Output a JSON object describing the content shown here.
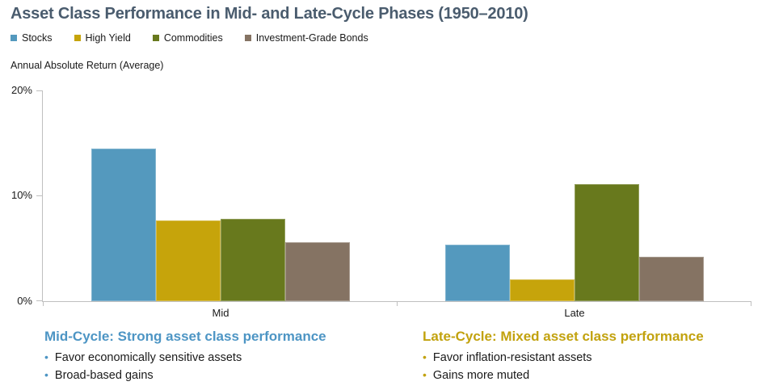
{
  "title": "Asset Class Performance in Mid- and Late-Cycle Phases (1950–2010)",
  "axis_title": "Annual Absolute Return (Average)",
  "colors": {
    "title_text": "#4A5C6E",
    "axis_line": "#BFBFBF",
    "stocks": "#5499BE",
    "high_yield": "#C6A40B",
    "commodities": "#68791D",
    "bonds": "#857363",
    "mid_heading": "#4D95C4",
    "late_heading": "#C2A20E"
  },
  "legend": [
    {
      "label": "Stocks",
      "color": "#5499BE"
    },
    {
      "label": "High Yield",
      "color": "#C6A40B"
    },
    {
      "label": "Commodities",
      "color": "#68791D"
    },
    {
      "label": "Investment-Grade Bonds",
      "color": "#857363"
    }
  ],
  "chart_data": {
    "type": "bar",
    "title": "Asset Class Performance in Mid- and Late-Cycle Phases (1950–2010)",
    "ylabel": "Annual Absolute Return (Average)",
    "categories": [
      "Mid",
      "Late"
    ],
    "series": [
      {
        "name": "Stocks",
        "color": "#5499BE",
        "values": [
          14.5,
          5.4
        ]
      },
      {
        "name": "High Yield",
        "color": "#C6A40B",
        "values": [
          7.7,
          2.1
        ]
      },
      {
        "name": "Commodities",
        "color": "#68791D",
        "values": [
          7.8,
          11.1
        ]
      },
      {
        "name": "Investment-Grade Bonds",
        "color": "#857363",
        "values": [
          5.6,
          4.2
        ]
      }
    ],
    "ylim": [
      0,
      20
    ],
    "yticks": [
      "0%",
      "10%",
      "20%"
    ],
    "grid": false,
    "legend_position": "top-left"
  },
  "annotations": {
    "mid": {
      "heading": "Mid-Cycle: Strong asset class performance",
      "bullets": [
        "Favor economically sensitive assets",
        "Broad-based gains"
      ]
    },
    "late": {
      "heading": "Late-Cycle: Mixed asset class performance",
      "bullets": [
        "Favor inflation-resistant assets",
        "Gains more muted"
      ]
    }
  }
}
